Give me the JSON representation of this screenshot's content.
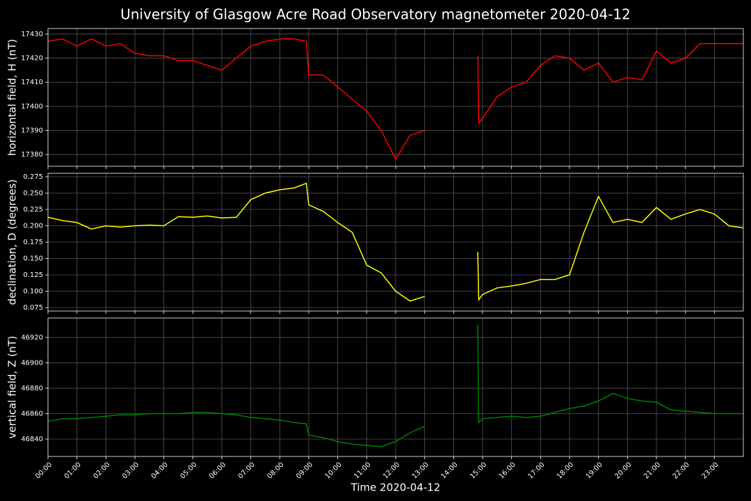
{
  "title": "University of Glasgow Acre Road Observatory magnetometer 2020-04-12",
  "chart_data": [
    {
      "type": "line",
      "ylabel": "horizontal field, H (nT)",
      "color": "#ff0000",
      "grid": true,
      "x": [
        "00:00",
        "00:30",
        "01:00",
        "01:30",
        "02:00",
        "02:30",
        "03:00",
        "03:30",
        "04:00",
        "04:30",
        "05:00",
        "05:30",
        "06:00",
        "06:30",
        "07:00",
        "07:30",
        "08:00",
        "08:30",
        "08:55",
        "09:00",
        "09:30",
        "10:00",
        "10:30",
        "11:00",
        "11:30",
        "12:00",
        "12:30",
        "13:00",
        "13:30",
        "14:00",
        "14:30",
        "14:50",
        "14:52",
        "15:00",
        "15:30",
        "16:00",
        "16:30",
        "17:00",
        "17:30",
        "18:00",
        "18:30",
        "19:00",
        "19:30",
        "20:00",
        "20:30",
        "21:00",
        "21:30",
        "22:00",
        "22:30",
        "23:00",
        "23:30",
        "23:59"
      ],
      "values": [
        17427,
        17428,
        17425,
        17428,
        17425,
        17426,
        17422,
        17421,
        17421,
        17419,
        17419,
        17417,
        17415,
        17420,
        17425,
        17427,
        17428,
        17428,
        17427,
        17413,
        17413,
        17408,
        17403,
        17398,
        17390,
        17378,
        17388,
        17390,
        null,
        null,
        null,
        17421,
        17393,
        17395,
        17404,
        17408,
        17410,
        17417,
        17421,
        17420,
        17415,
        17418,
        17410,
        17412,
        17411,
        17423,
        17418,
        17420,
        17426,
        17426,
        17426,
        17426
      ],
      "xlim": [
        "00:00",
        "24:00"
      ],
      "xticks": [
        "00:00",
        "01:00",
        "02:00",
        "03:00",
        "04:00",
        "05:00",
        "06:00",
        "07:00",
        "08:00",
        "09:00",
        "10:00",
        "11:00",
        "12:00",
        "13:00",
        "14:00",
        "15:00",
        "16:00",
        "17:00",
        "18:00",
        "19:00",
        "20:00",
        "21:00",
        "22:00",
        "23:00"
      ],
      "ylim": [
        17375.1,
        17432.3
      ],
      "yticks": [
        17380,
        17390,
        17400,
        17410,
        17420,
        17430
      ]
    },
    {
      "type": "line",
      "ylabel": "declination, D (degrees)",
      "color": "#ffff00",
      "grid": true,
      "x": [
        "00:00",
        "00:30",
        "01:00",
        "01:30",
        "02:00",
        "02:30",
        "03:00",
        "03:30",
        "04:00",
        "04:30",
        "05:00",
        "05:30",
        "06:00",
        "06:30",
        "07:00",
        "07:30",
        "08:00",
        "08:30",
        "08:55",
        "09:00",
        "09:30",
        "10:00",
        "10:30",
        "11:00",
        "11:30",
        "12:00",
        "12:30",
        "13:00",
        "13:30",
        "14:00",
        "14:30",
        "14:50",
        "14:52",
        "15:00",
        "15:30",
        "16:00",
        "16:30",
        "17:00",
        "17:30",
        "18:00",
        "18:30",
        "19:00",
        "19:30",
        "20:00",
        "20:30",
        "21:00",
        "21:30",
        "22:00",
        "22:30",
        "23:00",
        "23:30",
        "23:59"
      ],
      "values": [
        0.213,
        0.208,
        0.205,
        0.195,
        0.2,
        0.198,
        0.2,
        0.201,
        0.2,
        0.214,
        0.213,
        0.215,
        0.212,
        0.213,
        0.24,
        0.25,
        0.255,
        0.258,
        0.265,
        0.232,
        0.222,
        0.205,
        0.19,
        0.14,
        0.128,
        0.1,
        0.085,
        0.092,
        null,
        null,
        null,
        0.16,
        0.087,
        0.095,
        0.105,
        0.108,
        0.112,
        0.118,
        0.118,
        0.125,
        0.19,
        0.245,
        0.205,
        0.21,
        0.205,
        0.228,
        0.21,
        0.218,
        0.225,
        0.218,
        0.2,
        0.197
      ],
      "xlim": [
        "00:00",
        "24:00"
      ],
      "xticks": [
        "00:00",
        "01:00",
        "02:00",
        "03:00",
        "04:00",
        "05:00",
        "06:00",
        "07:00",
        "08:00",
        "09:00",
        "10:00",
        "11:00",
        "12:00",
        "13:00",
        "14:00",
        "15:00",
        "16:00",
        "17:00",
        "18:00",
        "19:00",
        "20:00",
        "21:00",
        "22:00",
        "23:00"
      ],
      "ylim": [
        0.0697,
        0.2803
      ],
      "yticks": [
        0.075,
        {
          "value": 0.1,
          "label": "0.100"
        },
        0.125,
        {
          "value": 0.15,
          "label": "0.150"
        },
        0.175,
        {
          "value": 0.2,
          "label": "0.200"
        },
        0.225,
        {
          "value": 0.25,
          "label": "0.250"
        },
        0.275
      ]
    },
    {
      "type": "line",
      "ylabel": "vertical field, Z (nT)",
      "xlabel": "Time 2020-04-12",
      "color": "#008000",
      "grid": true,
      "x": [
        "00:00",
        "00:30",
        "01:00",
        "01:30",
        "02:00",
        "02:30",
        "03:00",
        "03:30",
        "04:00",
        "04:30",
        "05:00",
        "05:30",
        "06:00",
        "06:30",
        "07:00",
        "07:30",
        "08:00",
        "08:30",
        "08:55",
        "09:00",
        "09:30",
        "10:00",
        "10:30",
        "11:00",
        "11:30",
        "12:00",
        "12:30",
        "13:00",
        "13:30",
        "14:00",
        "14:30",
        "14:50",
        "14:52",
        "15:00",
        "15:30",
        "16:00",
        "16:30",
        "17:00",
        "17:30",
        "18:00",
        "18:30",
        "19:00",
        "19:30",
        "20:00",
        "20:30",
        "21:00",
        "21:30",
        "22:00",
        "22:30",
        "23:00",
        "23:30",
        "23:59"
      ],
      "values": [
        46854,
        46856,
        46856,
        46857,
        46858,
        46859,
        46859,
        46860,
        46860,
        46860,
        46861,
        46861,
        46860,
        46859,
        46857,
        46856,
        46855,
        46853,
        46852,
        46843,
        46841,
        46838,
        46836,
        46835,
        46834,
        46838,
        46845,
        46850,
        null,
        null,
        null,
        46930,
        46853,
        46856,
        46857,
        46858,
        46857,
        46858,
        46861,
        46864,
        46866,
        46870,
        46876,
        46872,
        46870,
        46869,
        46863,
        46862,
        46861,
        46860,
        46860,
        46860
      ],
      "xlim": [
        "00:00",
        "24:00"
      ],
      "xticks": [
        "00:00",
        "01:00",
        "02:00",
        "03:00",
        "04:00",
        "05:00",
        "06:00",
        "07:00",
        "08:00",
        "09:00",
        "10:00",
        "11:00",
        "12:00",
        "13:00",
        "14:00",
        "15:00",
        "16:00",
        "17:00",
        "18:00",
        "19:00",
        "20:00",
        "21:00",
        "22:00",
        "23:00"
      ],
      "ylim": [
        46826.3,
        46935.3
      ],
      "yticks": [
        46840,
        46860,
        46880,
        46900,
        46920
      ]
    }
  ]
}
